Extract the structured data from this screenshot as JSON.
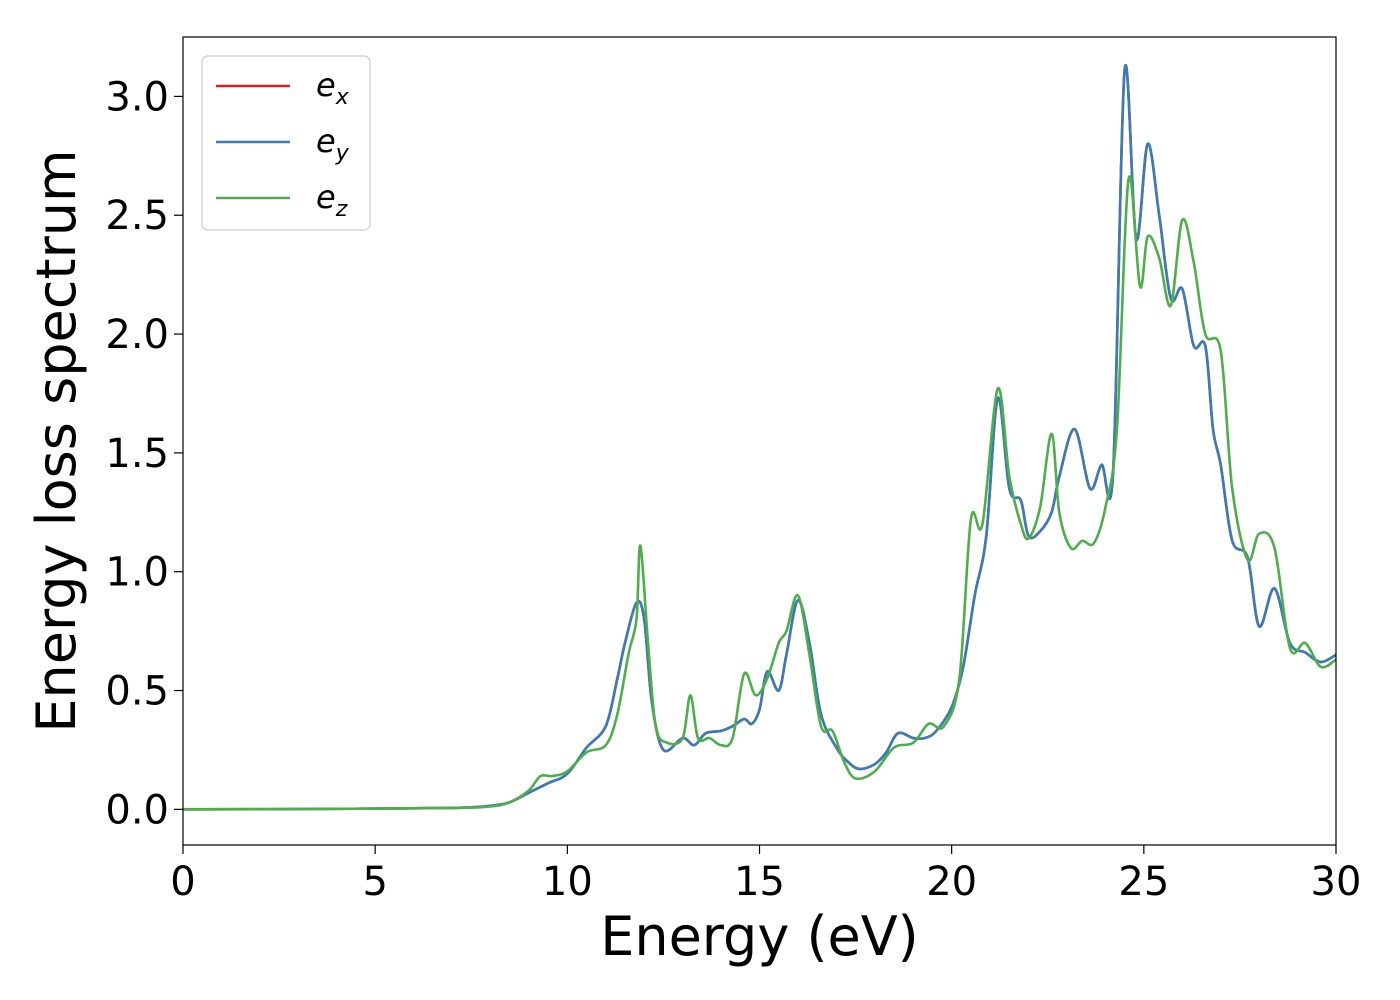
{
  "chart_data": {
    "type": "line",
    "xlabel": "Energy (eV)",
    "ylabel": "Energy loss spectrum",
    "xlim": [
      0,
      30
    ],
    "ylim": [
      -0.15,
      3.25
    ],
    "xticks": [
      0,
      5,
      10,
      15,
      20,
      25,
      30
    ],
    "yticks": [
      0.0,
      0.5,
      1.0,
      1.5,
      2.0,
      2.5,
      3.0
    ],
    "xtick_labels": [
      "0",
      "5",
      "10",
      "15",
      "20",
      "25",
      "30"
    ],
    "ytick_labels": [
      "0.0",
      "0.5",
      "1.0",
      "1.5",
      "2.0",
      "2.5",
      "3.0"
    ],
    "grid": false,
    "legend_placement": "top-left",
    "series": [
      {
        "name": "e_x",
        "legend_base": "e",
        "legend_sub": "x",
        "color": "#e41a1c",
        "points": [
          [
            0,
            0.0
          ],
          [
            4,
            0.002
          ],
          [
            7,
            0.006
          ],
          [
            8,
            0.015
          ],
          [
            8.5,
            0.03
          ],
          [
            9,
            0.07
          ],
          [
            9.5,
            0.11
          ],
          [
            10,
            0.15
          ],
          [
            10.5,
            0.26
          ],
          [
            11,
            0.35
          ],
          [
            11.3,
            0.55
          ],
          [
            11.5,
            0.7
          ],
          [
            11.8,
            0.87
          ],
          [
            12,
            0.8
          ],
          [
            12.2,
            0.45
          ],
          [
            12.5,
            0.25
          ],
          [
            13,
            0.3
          ],
          [
            13.3,
            0.27
          ],
          [
            13.6,
            0.32
          ],
          [
            14,
            0.33
          ],
          [
            14.3,
            0.35
          ],
          [
            14.6,
            0.38
          ],
          [
            14.8,
            0.36
          ],
          [
            15,
            0.42
          ],
          [
            15.2,
            0.58
          ],
          [
            15.5,
            0.5
          ],
          [
            15.7,
            0.65
          ],
          [
            16,
            0.88
          ],
          [
            16.3,
            0.7
          ],
          [
            16.6,
            0.4
          ],
          [
            17,
            0.26
          ],
          [
            17.3,
            0.2
          ],
          [
            17.6,
            0.17
          ],
          [
            18,
            0.19
          ],
          [
            18.3,
            0.24
          ],
          [
            18.6,
            0.32
          ],
          [
            19,
            0.3
          ],
          [
            19.3,
            0.3
          ],
          [
            19.6,
            0.33
          ],
          [
            20,
            0.43
          ],
          [
            20.3,
            0.6
          ],
          [
            20.6,
            0.9
          ],
          [
            20.9,
            1.15
          ],
          [
            21.2,
            1.73
          ],
          [
            21.5,
            1.35
          ],
          [
            21.8,
            1.3
          ],
          [
            22,
            1.15
          ],
          [
            22.3,
            1.17
          ],
          [
            22.6,
            1.25
          ],
          [
            22.8,
            1.4
          ],
          [
            23.2,
            1.6
          ],
          [
            23.6,
            1.35
          ],
          [
            23.9,
            1.45
          ],
          [
            24.2,
            1.42
          ],
          [
            24.5,
            3.11
          ],
          [
            24.8,
            2.4
          ],
          [
            25.1,
            2.8
          ],
          [
            25.4,
            2.5
          ],
          [
            25.7,
            2.15
          ],
          [
            26,
            2.19
          ],
          [
            26.3,
            1.95
          ],
          [
            26.6,
            1.95
          ],
          [
            26.8,
            1.6
          ],
          [
            27,
            1.45
          ],
          [
            27.3,
            1.13
          ],
          [
            27.7,
            1.06
          ],
          [
            28,
            0.77
          ],
          [
            28.4,
            0.93
          ],
          [
            28.8,
            0.7
          ],
          [
            29.2,
            0.66
          ],
          [
            29.6,
            0.62
          ],
          [
            30,
            0.65
          ]
        ]
      },
      {
        "name": "e_y",
        "legend_base": "e",
        "legend_sub": "y",
        "color": "#377eb8",
        "points": [
          [
            0,
            0.0
          ],
          [
            4,
            0.002
          ],
          [
            7,
            0.006
          ],
          [
            8,
            0.015
          ],
          [
            8.5,
            0.03
          ],
          [
            9,
            0.07
          ],
          [
            9.5,
            0.11
          ],
          [
            10,
            0.15
          ],
          [
            10.5,
            0.26
          ],
          [
            11,
            0.35
          ],
          [
            11.3,
            0.55
          ],
          [
            11.5,
            0.7
          ],
          [
            11.8,
            0.87
          ],
          [
            12,
            0.8
          ],
          [
            12.2,
            0.45
          ],
          [
            12.5,
            0.25
          ],
          [
            13,
            0.3
          ],
          [
            13.3,
            0.27
          ],
          [
            13.6,
            0.32
          ],
          [
            14,
            0.33
          ],
          [
            14.3,
            0.35
          ],
          [
            14.6,
            0.38
          ],
          [
            14.8,
            0.36
          ],
          [
            15,
            0.42
          ],
          [
            15.2,
            0.58
          ],
          [
            15.5,
            0.5
          ],
          [
            15.7,
            0.65
          ],
          [
            16,
            0.88
          ],
          [
            16.3,
            0.7
          ],
          [
            16.6,
            0.4
          ],
          [
            17,
            0.26
          ],
          [
            17.3,
            0.2
          ],
          [
            17.6,
            0.17
          ],
          [
            18,
            0.19
          ],
          [
            18.3,
            0.24
          ],
          [
            18.6,
            0.32
          ],
          [
            19,
            0.3
          ],
          [
            19.3,
            0.3
          ],
          [
            19.6,
            0.33
          ],
          [
            20,
            0.43
          ],
          [
            20.3,
            0.6
          ],
          [
            20.6,
            0.9
          ],
          [
            20.9,
            1.15
          ],
          [
            21.2,
            1.73
          ],
          [
            21.5,
            1.35
          ],
          [
            21.8,
            1.3
          ],
          [
            22,
            1.15
          ],
          [
            22.3,
            1.17
          ],
          [
            22.6,
            1.25
          ],
          [
            22.8,
            1.4
          ],
          [
            23.2,
            1.6
          ],
          [
            23.6,
            1.35
          ],
          [
            23.9,
            1.45
          ],
          [
            24.2,
            1.42
          ],
          [
            24.5,
            3.11
          ],
          [
            24.8,
            2.4
          ],
          [
            25.1,
            2.8
          ],
          [
            25.4,
            2.5
          ],
          [
            25.7,
            2.15
          ],
          [
            26,
            2.19
          ],
          [
            26.3,
            1.95
          ],
          [
            26.6,
            1.95
          ],
          [
            26.8,
            1.6
          ],
          [
            27,
            1.45
          ],
          [
            27.3,
            1.13
          ],
          [
            27.7,
            1.06
          ],
          [
            28,
            0.77
          ],
          [
            28.4,
            0.93
          ],
          [
            28.8,
            0.7
          ],
          [
            29.2,
            0.66
          ],
          [
            29.6,
            0.62
          ],
          [
            30,
            0.65
          ]
        ]
      },
      {
        "name": "e_z",
        "legend_base": "e",
        "legend_sub": "z",
        "color": "#4daf4a",
        "points": [
          [
            0,
            0.0
          ],
          [
            4,
            0.002
          ],
          [
            7,
            0.006
          ],
          [
            8,
            0.012
          ],
          [
            8.5,
            0.03
          ],
          [
            9,
            0.08
          ],
          [
            9.3,
            0.14
          ],
          [
            9.6,
            0.14
          ],
          [
            10,
            0.16
          ],
          [
            10.5,
            0.24
          ],
          [
            11,
            0.27
          ],
          [
            11.3,
            0.4
          ],
          [
            11.6,
            0.66
          ],
          [
            11.8,
            0.8
          ],
          [
            11.9,
            1.11
          ],
          [
            12.1,
            0.7
          ],
          [
            12.3,
            0.35
          ],
          [
            12.6,
            0.28
          ],
          [
            13,
            0.3
          ],
          [
            13.2,
            0.48
          ],
          [
            13.4,
            0.3
          ],
          [
            13.7,
            0.3
          ],
          [
            14,
            0.27
          ],
          [
            14.3,
            0.3
          ],
          [
            14.6,
            0.57
          ],
          [
            14.9,
            0.48
          ],
          [
            15.2,
            0.55
          ],
          [
            15.5,
            0.7
          ],
          [
            15.7,
            0.75
          ],
          [
            16,
            0.9
          ],
          [
            16.3,
            0.65
          ],
          [
            16.6,
            0.35
          ],
          [
            16.9,
            0.33
          ],
          [
            17.2,
            0.2
          ],
          [
            17.5,
            0.13
          ],
          [
            18,
            0.16
          ],
          [
            18.5,
            0.26
          ],
          [
            19,
            0.28
          ],
          [
            19.4,
            0.36
          ],
          [
            19.8,
            0.35
          ],
          [
            20.2,
            0.55
          ],
          [
            20.5,
            1.22
          ],
          [
            20.8,
            1.2
          ],
          [
            21.2,
            1.77
          ],
          [
            21.5,
            1.4
          ],
          [
            21.8,
            1.2
          ],
          [
            22,
            1.14
          ],
          [
            22.3,
            1.27
          ],
          [
            22.6,
            1.58
          ],
          [
            22.8,
            1.25
          ],
          [
            23.1,
            1.1
          ],
          [
            23.4,
            1.13
          ],
          [
            23.7,
            1.12
          ],
          [
            24,
            1.27
          ],
          [
            24.3,
            1.6
          ],
          [
            24.6,
            2.65
          ],
          [
            24.9,
            2.2
          ],
          [
            25.1,
            2.41
          ],
          [
            25.4,
            2.32
          ],
          [
            25.7,
            2.12
          ],
          [
            26,
            2.48
          ],
          [
            26.3,
            2.3
          ],
          [
            26.6,
            2.0
          ],
          [
            27,
            1.93
          ],
          [
            27.3,
            1.35
          ],
          [
            27.7,
            1.05
          ],
          [
            28,
            1.16
          ],
          [
            28.4,
            1.1
          ],
          [
            28.8,
            0.68
          ],
          [
            29.2,
            0.7
          ],
          [
            29.6,
            0.6
          ],
          [
            30,
            0.63
          ]
        ]
      }
    ]
  }
}
